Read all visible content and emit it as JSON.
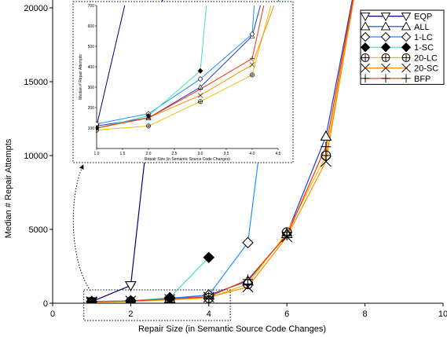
{
  "chart_data": [
    {
      "type": "line",
      "xlabel": "Repair Size (in Semantic Source Code Changes)",
      "ylabel": "Median # Repair Attempts",
      "xlim": [
        0,
        10
      ],
      "ylim": [
        0,
        20000
      ],
      "x_ticks": [
        "0",
        "2",
        "4",
        "6",
        "8",
        "10"
      ],
      "y_ticks": [
        "0",
        "5000",
        "10000",
        "15000",
        "20000"
      ],
      "grid": false,
      "legend_position": "top-right",
      "series": [
        {
          "name": "EQP",
          "color": "#000080",
          "marker": "triangle-down",
          "x": [
            1,
            2,
            3
          ],
          "y": [
            110,
            1200,
            25000
          ]
        },
        {
          "name": "ALL",
          "color": "#1a3fd0",
          "marker": "triangle-up",
          "x": [
            1,
            2,
            3,
            4,
            5,
            6,
            7,
            8
          ],
          "y": [
            110,
            150,
            300,
            550,
            1500,
            4700,
            11300,
            25000
          ]
        },
        {
          "name": "1-LC",
          "color": "#1e90ff",
          "marker": "diamond-open",
          "x": [
            1,
            2,
            3,
            4,
            5,
            6
          ],
          "y": [
            120,
            170,
            340,
            560,
            4100,
            25000
          ]
        },
        {
          "name": "1-SC",
          "color": "#40e0c0",
          "marker": "diamond-filled",
          "x": [
            1,
            2,
            3,
            4
          ],
          "y": [
            100,
            160,
            380,
            3100
          ]
        },
        {
          "name": "20-LC",
          "color": "#f0c000",
          "marker": "circle-plus",
          "x": [
            1,
            2,
            3,
            4,
            5,
            6,
            7,
            8
          ],
          "y": [
            90,
            110,
            230,
            360,
            1300,
            4800,
            10000,
            25000
          ]
        },
        {
          "name": "20-SC",
          "color": "#ff8c00",
          "marker": "x",
          "x": [
            1,
            2,
            3,
            4,
            5,
            6,
            7,
            8
          ],
          "y": [
            100,
            150,
            260,
            410,
            1100,
            4500,
            9600,
            25000
          ]
        },
        {
          "name": "BFP",
          "color": "#ff3000",
          "marker": "plus",
          "x": [
            1,
            2,
            3,
            4,
            5,
            6,
            7,
            8
          ],
          "y": [
            100,
            150,
            290,
            440,
            1600,
            4600,
            10600,
            25000
          ]
        }
      ]
    },
    {
      "type": "line",
      "xlabel": "Repair Size (in Semantic Source Code Changes)",
      "ylabel": "Median # Repair Attempts",
      "xlim": [
        1,
        4.5
      ],
      "ylim": [
        0,
        700
      ],
      "x_ticks": [
        "1.0",
        "1.5",
        "2.0",
        "2.5",
        "3.0",
        "3.5",
        "4.0",
        "4.5"
      ],
      "y_ticks": [
        "100",
        "200",
        "300",
        "400",
        "500",
        "600",
        "700"
      ],
      "series_ref": "same series as the main chart, zoomed to the dotted box"
    }
  ]
}
